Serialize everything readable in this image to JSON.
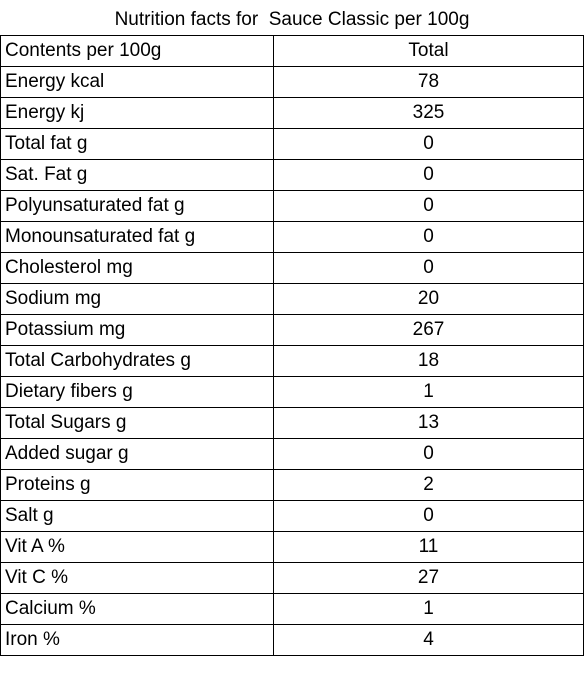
{
  "table": {
    "title": "Nutrition facts for  Sauce Classic per 100g",
    "header": [
      "Contents per 100g",
      "Total"
    ],
    "rows": [
      [
        "Energy kcal",
        "78"
      ],
      [
        "Energy kj",
        "325"
      ],
      [
        "Total fat g",
        "0"
      ],
      [
        "Sat. Fat g",
        "0"
      ],
      [
        "Polyunsaturated fat g",
        "0"
      ],
      [
        "Monounsaturated fat g",
        "0"
      ],
      [
        "Cholesterol mg",
        "0"
      ],
      [
        "Sodium mg",
        "20"
      ],
      [
        "Potassium mg",
        "267"
      ],
      [
        "Total Carbohydrates g",
        "18"
      ],
      [
        "Dietary fibers g",
        "1"
      ],
      [
        "Total Sugars g",
        "13"
      ],
      [
        "Added sugar g",
        "0"
      ],
      [
        "Proteins g",
        "2"
      ],
      [
        "Salt g",
        "0"
      ],
      [
        "Vit A %",
        "11"
      ],
      [
        "Vit C %",
        "27"
      ],
      [
        "Calcium %",
        "1"
      ],
      [
        "Iron %",
        "4"
      ]
    ]
  }
}
